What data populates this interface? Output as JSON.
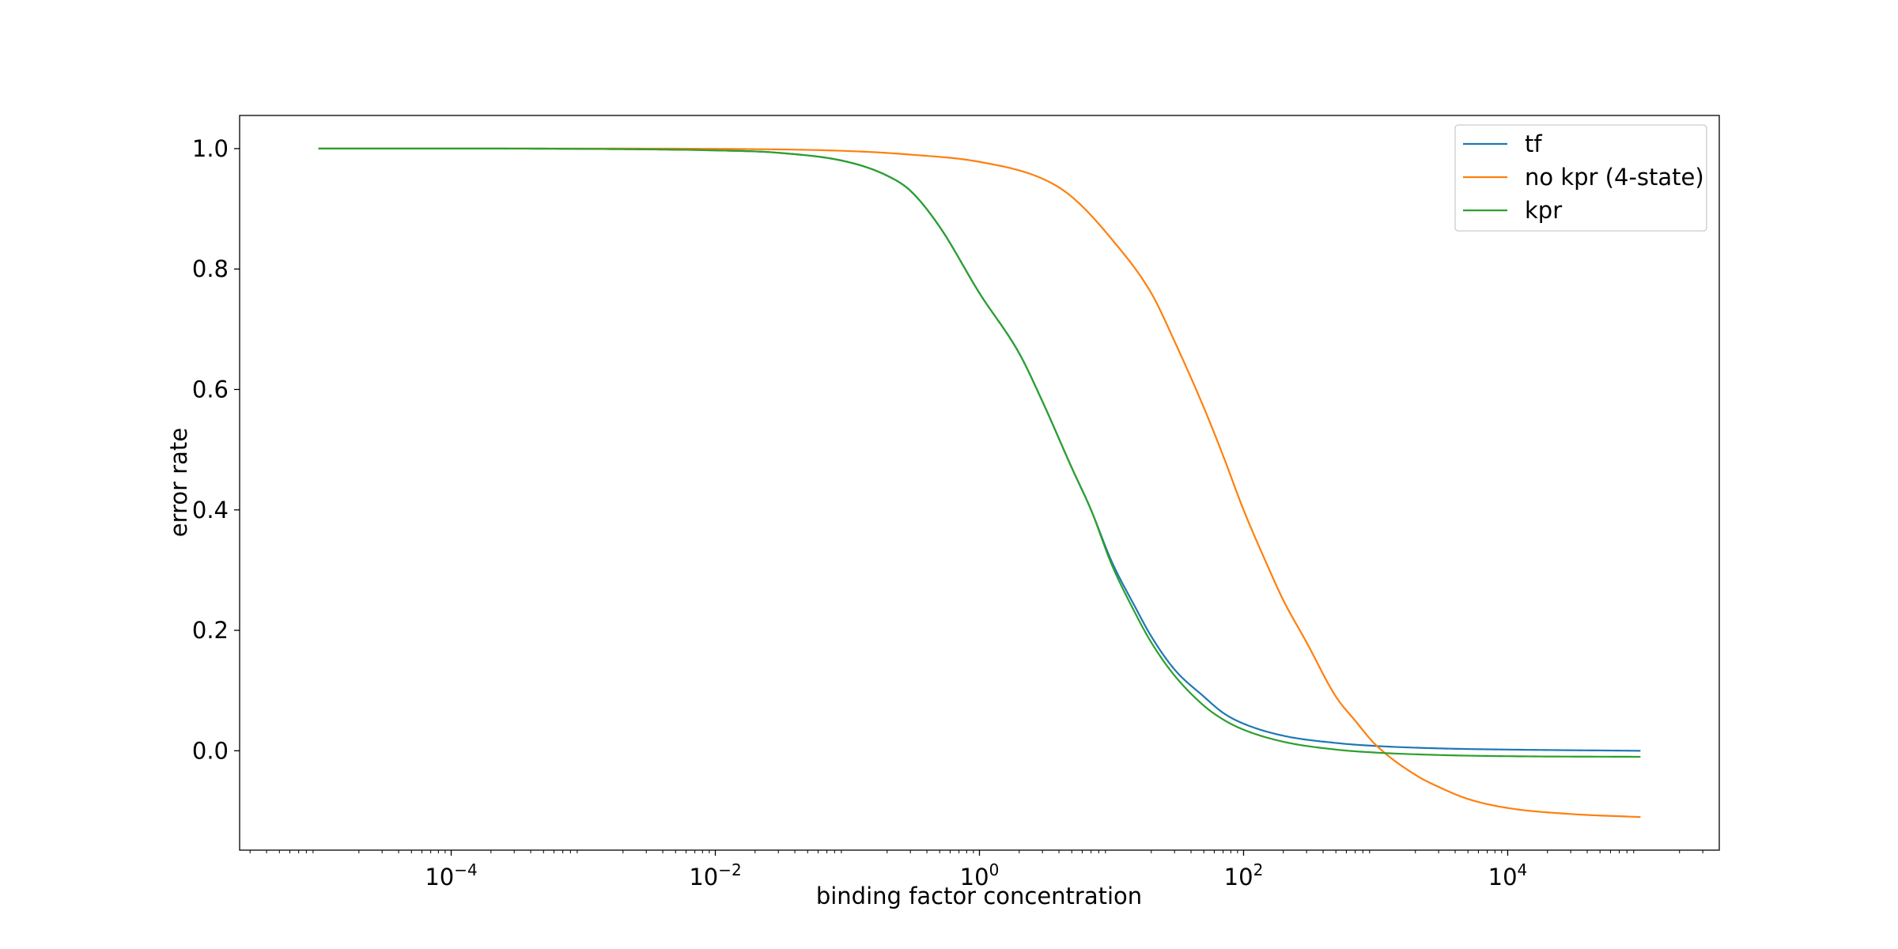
{
  "chart_data": {
    "type": "line",
    "title": "",
    "xlabel": "binding factor concentration",
    "ylabel": "error rate",
    "xscale": "log",
    "xlim": [
      2.5e-06,
      400000
    ],
    "ylim": [
      -0.165,
      1.055
    ],
    "x_ticks": [
      {
        "value": 0.0001,
        "base": "10",
        "exp": "−4"
      },
      {
        "value": 0.01,
        "base": "10",
        "exp": "−2"
      },
      {
        "value": 1,
        "base": "10",
        "exp": "0"
      },
      {
        "value": 100,
        "base": "10",
        "exp": "2"
      },
      {
        "value": 10000,
        "base": "10",
        "exp": "4"
      }
    ],
    "y_ticks": [
      {
        "value": 0.0,
        "label": "0.0"
      },
      {
        "value": 0.2,
        "label": "0.2"
      },
      {
        "value": 0.4,
        "label": "0.4"
      },
      {
        "value": 0.6,
        "label": "0.6"
      },
      {
        "value": 0.8,
        "label": "0.8"
      },
      {
        "value": 1.0,
        "label": "1.0"
      }
    ],
    "grid": false,
    "legend_position": "top-right",
    "series": [
      {
        "name": "tf",
        "color": "#1f77b4",
        "points": [
          [
            1e-05,
            1.0
          ],
          [
            0.0001,
            1.0
          ],
          [
            0.001,
            0.9995
          ],
          [
            0.01,
            0.997
          ],
          [
            0.03,
            0.993
          ],
          [
            0.1,
            0.978
          ],
          [
            0.2,
            0.955
          ],
          [
            0.3,
            0.93
          ],
          [
            0.5,
            0.87
          ],
          [
            1,
            0.76
          ],
          [
            2,
            0.66
          ],
          [
            3,
            0.58
          ],
          [
            5,
            0.47
          ],
          [
            7,
            0.4
          ],
          [
            10,
            0.315
          ],
          [
            15,
            0.24
          ],
          [
            20,
            0.19
          ],
          [
            30,
            0.135
          ],
          [
            50,
            0.09
          ],
          [
            70,
            0.063
          ],
          [
            100,
            0.045
          ],
          [
            200,
            0.025
          ],
          [
            500,
            0.013
          ],
          [
            1000,
            0.008
          ],
          [
            3000,
            0.004
          ],
          [
            10000,
            0.002
          ],
          [
            100000,
            0.0
          ]
        ]
      },
      {
        "name": "no kpr (4-state)",
        "color": "#ff7f0e",
        "points": [
          [
            1e-05,
            1.0
          ],
          [
            0.001,
            1.0
          ],
          [
            0.01,
            0.9995
          ],
          [
            0.1,
            0.996
          ],
          [
            0.3,
            0.99
          ],
          [
            1,
            0.978
          ],
          [
            3,
            0.95
          ],
          [
            5,
            0.92
          ],
          [
            10,
            0.85
          ],
          [
            20,
            0.76
          ],
          [
            30,
            0.68
          ],
          [
            50,
            0.57
          ],
          [
            70,
            0.49
          ],
          [
            100,
            0.4
          ],
          [
            150,
            0.31
          ],
          [
            200,
            0.25
          ],
          [
            300,
            0.18
          ],
          [
            500,
            0.09
          ],
          [
            700,
            0.05
          ],
          [
            1000,
            0.01
          ],
          [
            2000,
            -0.04
          ],
          [
            3000,
            -0.06
          ],
          [
            5000,
            -0.08
          ],
          [
            10000,
            -0.095
          ],
          [
            30000,
            -0.105
          ],
          [
            100000,
            -0.11
          ]
        ]
      },
      {
        "name": "kpr",
        "color": "#2ca02c",
        "points": [
          [
            1e-05,
            1.0
          ],
          [
            0.0001,
            1.0
          ],
          [
            0.001,
            0.9995
          ],
          [
            0.01,
            0.997
          ],
          [
            0.03,
            0.993
          ],
          [
            0.1,
            0.978
          ],
          [
            0.2,
            0.955
          ],
          [
            0.3,
            0.93
          ],
          [
            0.5,
            0.87
          ],
          [
            1,
            0.76
          ],
          [
            2,
            0.66
          ],
          [
            3,
            0.58
          ],
          [
            5,
            0.47
          ],
          [
            7,
            0.4
          ],
          [
            10,
            0.31
          ],
          [
            15,
            0.23
          ],
          [
            20,
            0.18
          ],
          [
            30,
            0.125
          ],
          [
            50,
            0.075
          ],
          [
            70,
            0.052
          ],
          [
            100,
            0.035
          ],
          [
            200,
            0.015
          ],
          [
            500,
            0.002
          ],
          [
            1000,
            -0.003
          ],
          [
            3000,
            -0.007
          ],
          [
            10000,
            -0.009
          ],
          [
            100000,
            -0.01
          ]
        ]
      }
    ]
  }
}
